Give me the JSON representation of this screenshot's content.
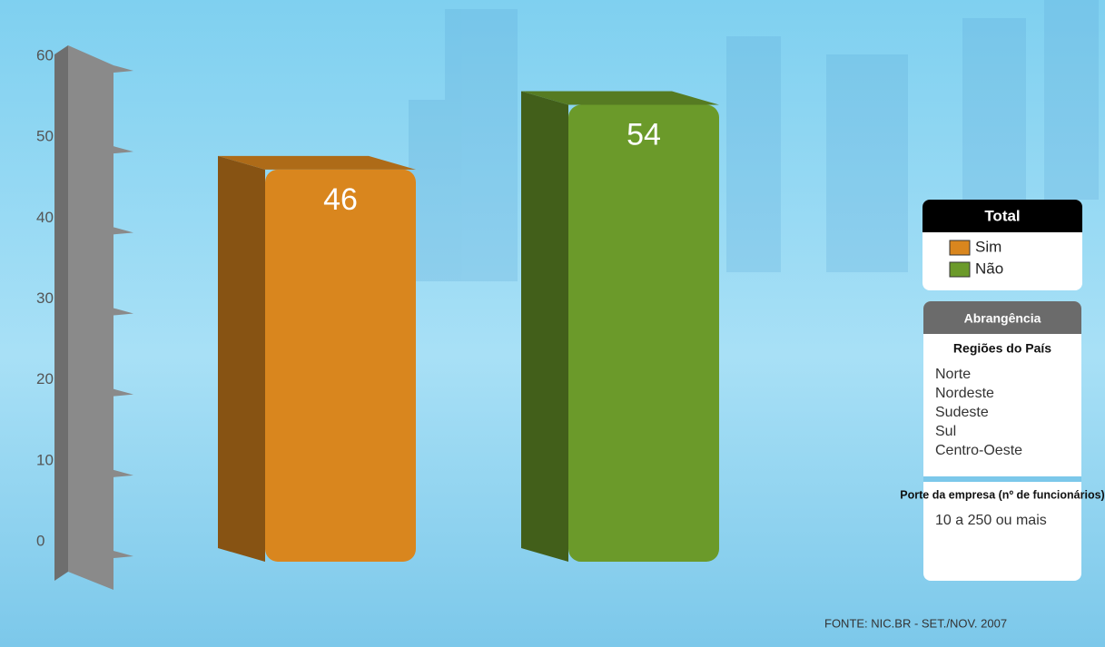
{
  "chart_data": {
    "type": "bar3d",
    "categories": [
      null
    ],
    "series": [
      {
        "name": "Sim",
        "color": "#d9861e",
        "values": [
          46
        ]
      },
      {
        "name": "Não",
        "color": "#6b9a2a",
        "values": [
          54
        ]
      }
    ],
    "ylim": [
      0,
      60
    ],
    "yticks": [
      0,
      10,
      20,
      30,
      40,
      50,
      60
    ],
    "legend_title": "Total",
    "legend": "right",
    "coverage": {
      "title": "Abrangência",
      "sections": [
        {
          "heading": "Regiões do País",
          "items": [
            "Norte",
            "Nordeste",
            "Sudeste",
            "Sul",
            "Centro-Oeste"
          ]
        },
        {
          "heading": "Porte da empresa (nº de funcionários)",
          "items": [
            "10 a 250 ou mais"
          ]
        }
      ]
    },
    "source": "FONTE: NIC.BR - SET./NOV. 2007"
  }
}
